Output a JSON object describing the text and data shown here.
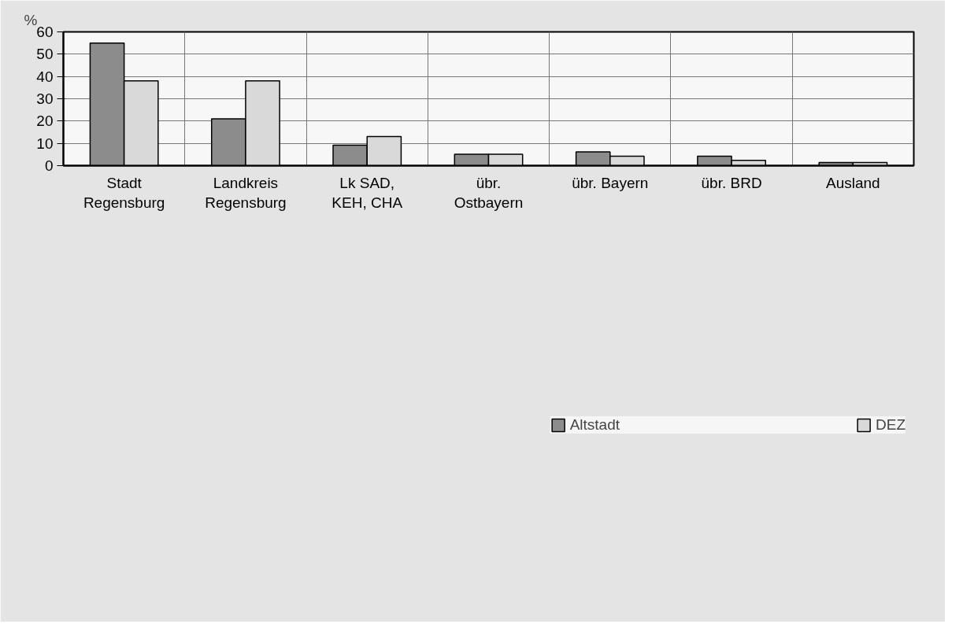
{
  "chart_data": {
    "type": "bar",
    "ylabel": "%",
    "categories": [
      "Stadt\nRegensburg",
      "Landkreis\nRegensburg",
      "Lk SAD,\nKEH, CHA",
      "übr.\nOstbayern",
      "übr. Bayern",
      "übr. BRD",
      "Ausland"
    ],
    "series": [
      {
        "name": "Altstadt",
        "color": "#8c8c8c",
        "values": [
          55,
          21,
          9.2,
          5.1,
          6.2,
          4.2,
          1.4
        ]
      },
      {
        "name": "DEZ",
        "color": "#d9d9d9",
        "values": [
          38,
          38,
          13.1,
          5.1,
          4.2,
          2.4,
          1.4
        ]
      }
    ],
    "ylim": [
      0,
      60
    ],
    "yticks": [
      0,
      10,
      20,
      30,
      40,
      50,
      60
    ],
    "grid": true,
    "legend": "bottom"
  }
}
